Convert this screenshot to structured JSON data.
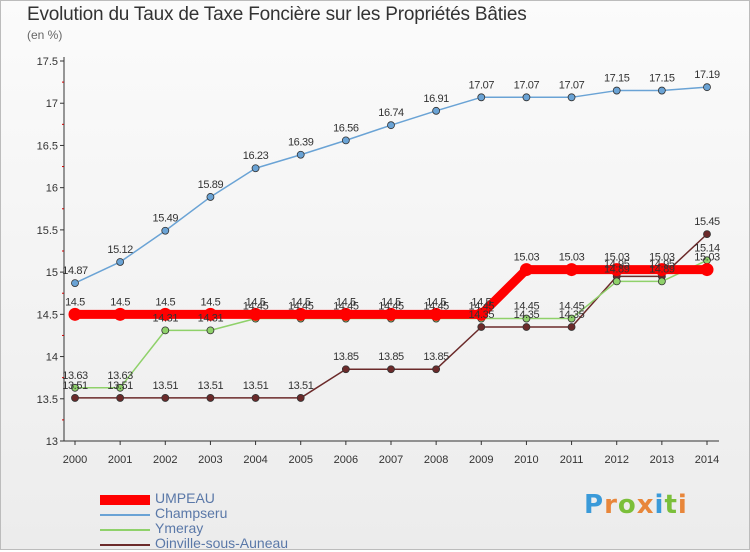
{
  "title": "Evolution du Taux de Taxe Foncière sur les Propriétés Bâties",
  "unit_label": "(en %)",
  "logo": {
    "letters": [
      "P",
      "r",
      "o",
      "x",
      "i",
      "t",
      "i"
    ],
    "colors": [
      "#3a9ad9",
      "#e8863a",
      "#7bbf3a",
      "#e8863a",
      "#3a9ad9",
      "#7bbf3a",
      "#e8863a"
    ]
  },
  "chart_data": {
    "type": "line",
    "title": "Evolution du Taux de Taxe Foncière sur les Propriétés Bâties",
    "ylabel": "(en %)",
    "xlabel": "",
    "ylim": [
      13,
      17.5
    ],
    "yticks": [
      "13",
      "13.5",
      "14",
      "14.5",
      "15",
      "15.5",
      "16",
      "16.5",
      "17",
      "17.5"
    ],
    "x": [
      "2000",
      "2001",
      "2002",
      "2003",
      "2004",
      "2005",
      "2006",
      "2007",
      "2008",
      "2009",
      "2010",
      "2011",
      "2012",
      "2013",
      "2014"
    ],
    "series": [
      {
        "name": "Oinville-sous-Auneau",
        "color": "#6b2a2a",
        "values": [
          13.51,
          13.51,
          13.51,
          13.51,
          13.51,
          13.51,
          13.85,
          13.85,
          13.85,
          14.35,
          14.35,
          14.35,
          14.95,
          14.95,
          15.45
        ],
        "labels": [
          "13.51",
          "13.51",
          "13.51",
          "13.51",
          "13.51",
          "13.51",
          "13.85",
          "13.85",
          "13.85",
          "14.35",
          "14.35",
          "14.35",
          "14.95",
          "14.95",
          "15.45"
        ]
      },
      {
        "name": "Ymeray",
        "color": "#8fd16a",
        "values": [
          13.63,
          13.63,
          14.31,
          14.31,
          14.45,
          14.45,
          14.45,
          14.45,
          14.45,
          14.45,
          14.45,
          14.45,
          14.89,
          14.89,
          15.14
        ],
        "labels": [
          "13.63",
          "13.63",
          "14.31",
          "14.31",
          "14.45",
          "14.45",
          "14.45",
          "14.45",
          "14.45",
          "14.45",
          "14.45",
          "14.45",
          "14.89",
          "14.89",
          "15.14"
        ]
      },
      {
        "name": "Champseru",
        "color": "#6aa3d5",
        "values": [
          14.87,
          15.12,
          15.49,
          15.89,
          16.23,
          16.39,
          16.56,
          16.74,
          16.91,
          17.07,
          17.07,
          17.07,
          17.15,
          17.15,
          17.19
        ],
        "labels": [
          "14.87",
          "15.12",
          "15.49",
          "15.89",
          "16.23",
          "16.39",
          "16.56",
          "16.74",
          "16.91",
          "17.07",
          "17.07",
          "17.07",
          "17.15",
          "17.15",
          "17.19"
        ]
      },
      {
        "name": "UMPEAU",
        "color": "#ff0000",
        "values": [
          14.5,
          14.5,
          14.5,
          14.5,
          14.5,
          14.5,
          14.5,
          14.5,
          14.5,
          14.5,
          15.03,
          15.03,
          15.03,
          15.03,
          15.03
        ],
        "labels": [
          "14.5",
          "14.5",
          "14.5",
          "14.5",
          "14.5",
          "14.5",
          "14.5",
          "14.5",
          "14.5",
          "14.5",
          "15.03",
          "15.03",
          "15.03",
          "15.03",
          "15.03"
        ]
      }
    ],
    "legend": [
      "UMPEAU",
      "Champseru",
      "Ymeray",
      "Oinville-sous-Auneau"
    ],
    "legend_position": "bottom-left",
    "grid": false
  }
}
